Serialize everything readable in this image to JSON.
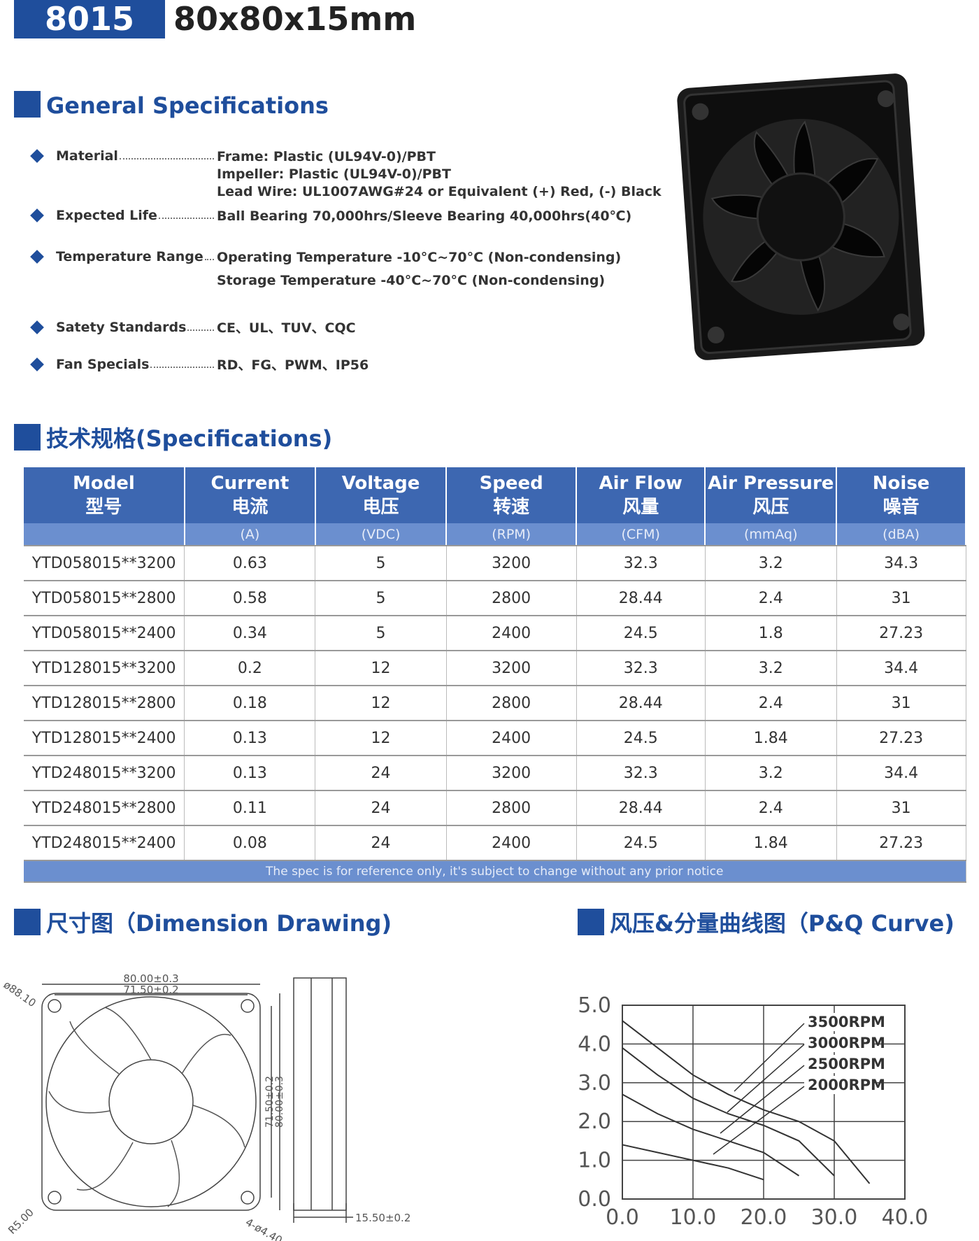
{
  "header": {
    "model": "8015",
    "size": "80x80x15mm"
  },
  "general": {
    "title": "General Specifications",
    "items": [
      {
        "label": "Material",
        "lines": [
          "Frame: Plastic (UL94V-0)/PBT",
          "Impeller: Plastic (UL94V-0)/PBT",
          "Lead Wire: UL1007AWG#24 or Equivalent (+) Red, (-) Black"
        ]
      },
      {
        "label": "Expected Life",
        "lines": [
          "Ball Bearing 70,000hrs/Sleeve Bearing 40,000hrs(40℃)"
        ]
      },
      {
        "label": "Temperature Range",
        "lines": [
          "Operating Temperature -10°C~70°C (Non-condensing)",
          "Storage Temperature -40°C~70°C (Non-condensing)"
        ]
      },
      {
        "label": "Satety Standards",
        "lines": [
          "CE、UL、TUV、CQC"
        ]
      },
      {
        "label": "Fan Specials",
        "lines": [
          "RD、FG、PWM、IP56"
        ]
      }
    ]
  },
  "specs": {
    "title": "技术规格(Specifications)",
    "columns": [
      {
        "en": "Model",
        "zh": "型号",
        "unit": null
      },
      {
        "en": "Current",
        "zh": "电流",
        "unit": "(A)"
      },
      {
        "en": "Voltage",
        "zh": "电压",
        "unit": "(VDC)"
      },
      {
        "en": "Speed",
        "zh": "转速",
        "unit": "(RPM)"
      },
      {
        "en": "Air Flow",
        "zh": "风量",
        "unit": "(CFM)"
      },
      {
        "en": "Air Pressure",
        "zh": "风压",
        "unit": "(mmAq)"
      },
      {
        "en": "Noise",
        "zh": "噪音",
        "unit": "(dBA)"
      }
    ],
    "rows": [
      [
        "YTD058015**3200",
        "0.63",
        "5",
        "3200",
        "32.3",
        "3.2",
        "34.3"
      ],
      [
        "YTD058015**2800",
        "0.58",
        "5",
        "2800",
        "28.44",
        "2.4",
        "31"
      ],
      [
        "YTD058015**2400",
        "0.34",
        "5",
        "2400",
        "24.5",
        "1.8",
        "27.23"
      ],
      [
        "YTD128015**3200",
        "0.2",
        "12",
        "3200",
        "32.3",
        "3.2",
        "34.4"
      ],
      [
        "YTD128015**2800",
        "0.18",
        "12",
        "2800",
        "28.44",
        "2.4",
        "31"
      ],
      [
        "YTD128015**2400",
        "0.13",
        "12",
        "2400",
        "24.5",
        "1.84",
        "27.23"
      ],
      [
        "YTD248015**3200",
        "0.13",
        "24",
        "3200",
        "32.3",
        "3.2",
        "34.4"
      ],
      [
        "YTD248015**2800",
        "0.11",
        "24",
        "2800",
        "28.44",
        "2.4",
        "31"
      ],
      [
        "YTD248015**2400",
        "0.08",
        "24",
        "2400",
        "24.5",
        "1.84",
        "27.23"
      ]
    ],
    "note": "The spec is for reference only, it's subject to change without any prior notice"
  },
  "dimension": {
    "title": "尺寸图（Dimension Drawing)",
    "labels": [
      "80.00±0.3",
      "71.50±0.2",
      "ø88.10",
      "R5.00",
      "4-ø4.40",
      "15.50±0.2"
    ]
  },
  "chart_data": {
    "type": "line",
    "title": "风压&分量曲线图（P&Q Curve)",
    "x": [
      0,
      5,
      10,
      15,
      20,
      25,
      30,
      35,
      40
    ],
    "series": [
      {
        "name": "3500RPM",
        "color": "#333333",
        "values": [
          4.6,
          3.9,
          3.2,
          2.7,
          2.3,
          2.0,
          1.5,
          0.4,
          null
        ]
      },
      {
        "name": "3000RPM",
        "color": "#333333",
        "values": [
          3.9,
          3.2,
          2.6,
          2.2,
          1.9,
          1.5,
          0.6,
          null,
          null
        ]
      },
      {
        "name": "2500RPM",
        "color": "#333333",
        "values": [
          2.7,
          2.2,
          1.8,
          1.5,
          1.2,
          0.6,
          null,
          null,
          null
        ]
      },
      {
        "name": "2000RPM",
        "color": "#333333",
        "values": [
          1.4,
          1.2,
          1.0,
          0.8,
          0.5,
          null,
          null,
          null,
          null
        ]
      }
    ],
    "xlim": [
      0,
      40
    ],
    "ylim": [
      0,
      5
    ],
    "xticks": [
      {
        "value": 0,
        "label": "0.0"
      },
      {
        "value": 10,
        "label": "10.0"
      },
      {
        "value": 20,
        "label": "20.0"
      },
      {
        "value": 30,
        "label": "30.0"
      },
      {
        "value": 40,
        "label": "40.0"
      }
    ],
    "yticks": [
      {
        "value": 0,
        "label": "0.0"
      },
      {
        "value": 1,
        "label": "1.0"
      },
      {
        "value": 2,
        "label": "2.0"
      },
      {
        "value": 3,
        "label": "3.0"
      },
      {
        "value": 4,
        "label": "4.0"
      },
      {
        "value": 5,
        "label": "5.0"
      }
    ],
    "grid": true
  }
}
